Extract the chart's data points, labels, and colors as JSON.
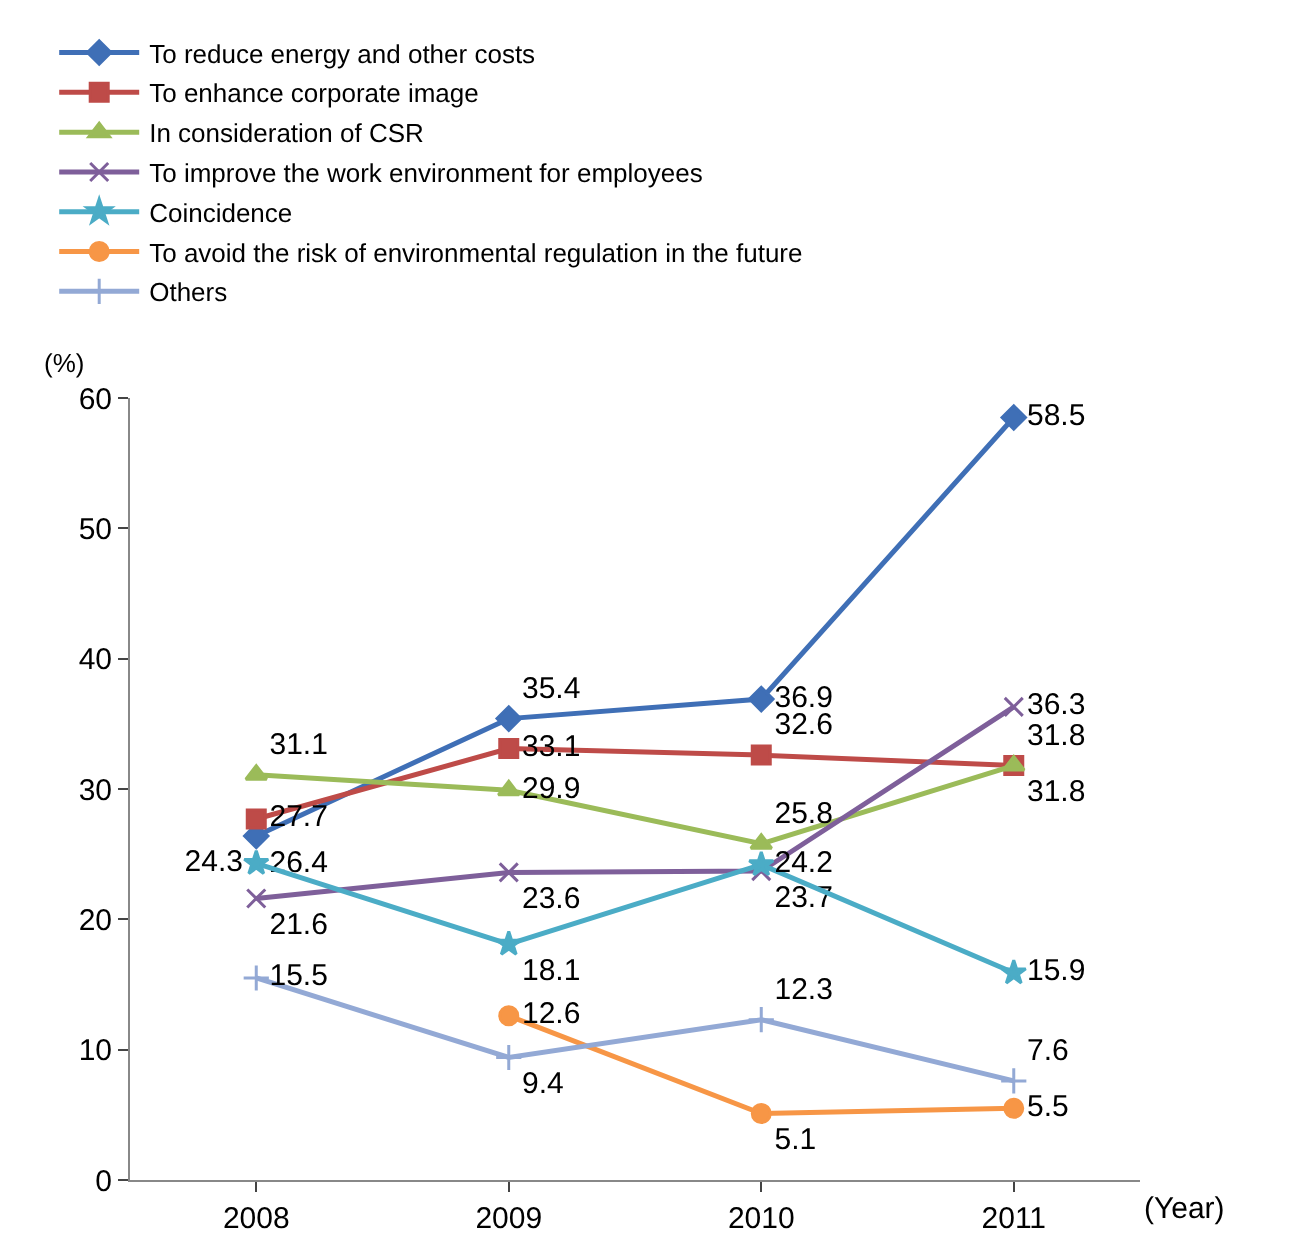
{
  "chart_data": {
    "type": "line",
    "ylabel": "(%)",
    "xlabel": "(Year)",
    "categories": [
      "2008",
      "2009",
      "2010",
      "2011"
    ],
    "series": [
      {
        "name": "To reduce energy and other costs",
        "color": "#3f6fb6",
        "marker": "diamond",
        "values": [
          26.4,
          35.4,
          36.9,
          58.5
        ]
      },
      {
        "name": "To enhance corporate image",
        "color": "#be4b48",
        "marker": "square",
        "values": [
          27.7,
          33.1,
          32.6,
          31.8
        ]
      },
      {
        "name": "In consideration of CSR",
        "color": "#9bbb59",
        "marker": "triangle",
        "values": [
          31.1,
          29.9,
          25.8,
          31.8
        ]
      },
      {
        "name": "To improve the work environment for employees",
        "color": "#7e5f9a",
        "marker": "x",
        "values": [
          21.6,
          23.6,
          23.7,
          36.3
        ]
      },
      {
        "name": "Coincidence",
        "color": "#4bacc6",
        "marker": "star",
        "values": [
          24.3,
          18.1,
          24.2,
          15.9
        ]
      },
      {
        "name": "To avoid the risk of environmental regulation in the future",
        "color": "#f79646",
        "marker": "circle",
        "values": [
          null,
          12.6,
          5.1,
          5.5
        ]
      },
      {
        "name": "Others",
        "color": "#93a9d5",
        "marker": "cross",
        "values": [
          15.5,
          9.4,
          12.3,
          7.6
        ]
      }
    ],
    "ylim": [
      0,
      60
    ],
    "yticks": [
      0,
      10,
      20,
      30,
      40,
      50,
      60
    ],
    "data_labels": true,
    "legend": "top left",
    "line_style": "solid"
  }
}
